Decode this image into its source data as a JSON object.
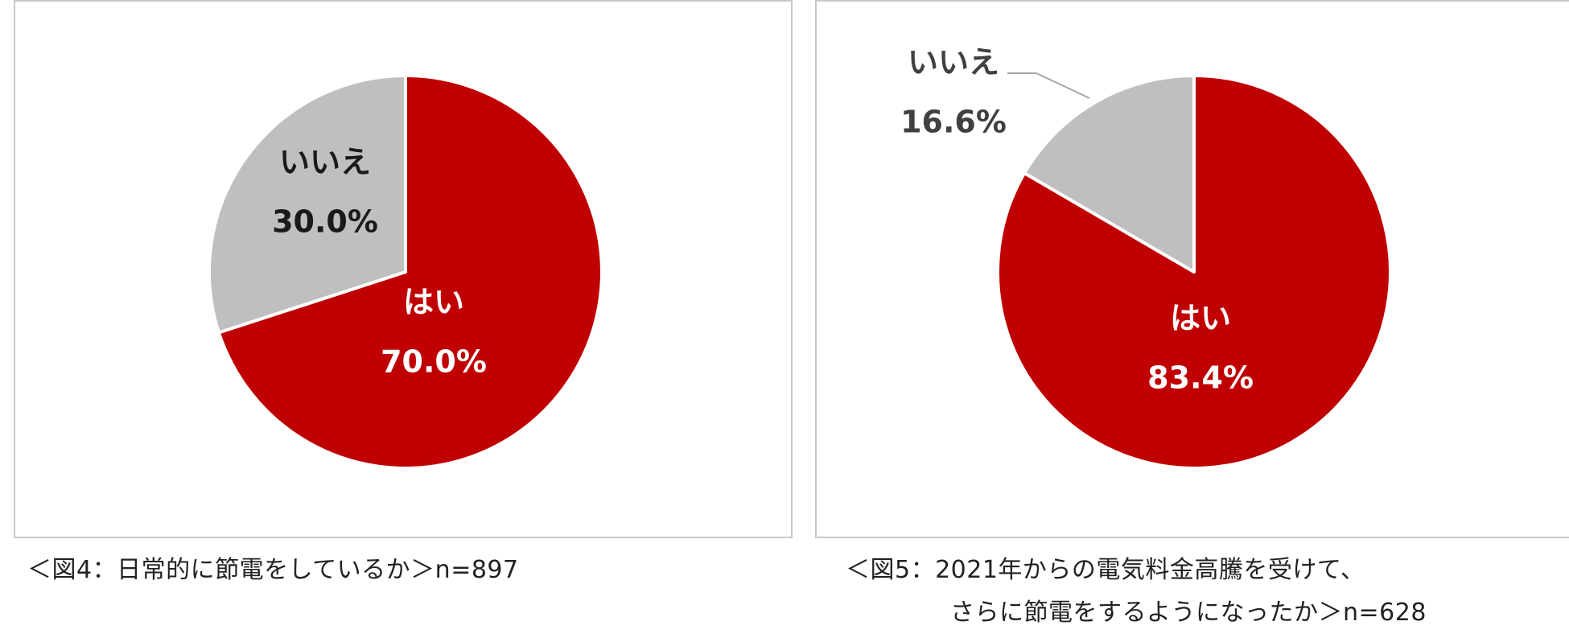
{
  "figures": [
    {
      "caption_lines": [
        "＜図4：日常的に節電をしているか＞n=897"
      ]
    },
    {
      "caption_lines": [
        "＜図5：2021年からの電気料金高騰を受けて、",
        "さらに節電をするようになったか＞n=628"
      ]
    }
  ],
  "colors": {
    "yes": "#c00000",
    "no": "#bfbfbf",
    "label_on_red": "#ffffff",
    "label_on_gray": "#1a1a1a",
    "label_outside": "#404040",
    "leader": "#a6a6a6"
  },
  "chart_data": [
    {
      "type": "pie",
      "title": "",
      "start_angle": "12 o'clock, clockwise",
      "slices": [
        {
          "label": "はい",
          "value": 70.0,
          "display": "70.0%"
        },
        {
          "label": "いいえ",
          "value": 30.0,
          "display": "30.0%"
        }
      ],
      "legend": "none"
    },
    {
      "type": "pie",
      "title": "",
      "start_angle": "12 o'clock, clockwise",
      "slices": [
        {
          "label": "はい",
          "value": 83.4,
          "display": "83.4%"
        },
        {
          "label": "いいえ",
          "value": 16.6,
          "display": "16.6%"
        }
      ],
      "legend": "none"
    }
  ]
}
